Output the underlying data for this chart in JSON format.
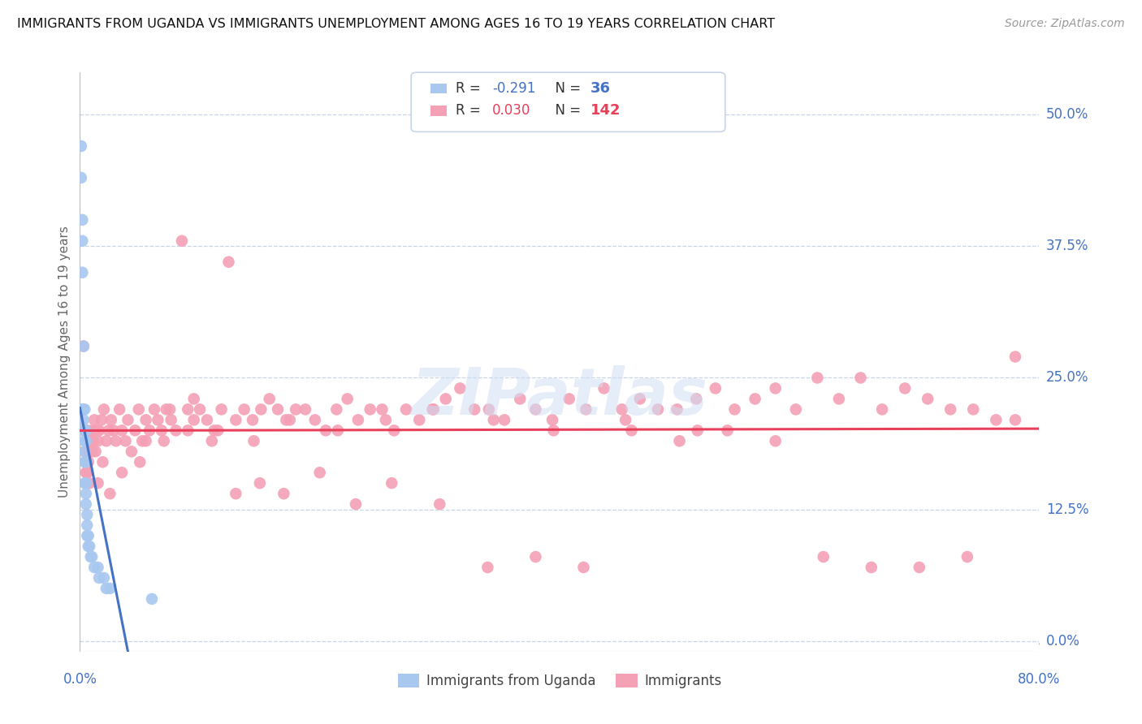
{
  "title": "IMMIGRANTS FROM UGANDA VS IMMIGRANTS UNEMPLOYMENT AMONG AGES 16 TO 19 YEARS CORRELATION CHART",
  "source": "Source: ZipAtlas.com",
  "ylabel": "Unemployment Among Ages 16 to 19 years",
  "ytick_labels": [
    "0.0%",
    "12.5%",
    "25.0%",
    "37.5%",
    "50.0%"
  ],
  "ytick_values": [
    0.0,
    0.125,
    0.25,
    0.375,
    0.5
  ],
  "xlim": [
    0.0,
    0.8
  ],
  "ylim": [
    -0.01,
    0.54
  ],
  "R_uganda": -0.291,
  "N_uganda": 36,
  "R_immigrants": 0.03,
  "N_immigrants": 142,
  "color_uganda": "#a8c8f0",
  "color_immigrants": "#f4a0b5",
  "color_line_uganda": "#4472c4",
  "color_line_immigrants": "#e8405a",
  "color_axis_labels": "#4472c4",
  "color_ylabel": "#666666",
  "watermark": "ZIPatlas",
  "background_color": "#ffffff",
  "grid_color": "#c8d4e8",
  "uganda_x": [
    0.001,
    0.001,
    0.002,
    0.002,
    0.002,
    0.002,
    0.003,
    0.003,
    0.003,
    0.003,
    0.004,
    0.004,
    0.004,
    0.004,
    0.004,
    0.005,
    0.005,
    0.005,
    0.005,
    0.005,
    0.005,
    0.006,
    0.006,
    0.006,
    0.007,
    0.007,
    0.008,
    0.009,
    0.01,
    0.012,
    0.015,
    0.016,
    0.02,
    0.022,
    0.025,
    0.06
  ],
  "uganda_y": [
    0.47,
    0.44,
    0.4,
    0.38,
    0.35,
    0.22,
    0.22,
    0.21,
    0.2,
    0.28,
    0.22,
    0.19,
    0.18,
    0.17,
    0.15,
    0.2,
    0.19,
    0.17,
    0.15,
    0.14,
    0.13,
    0.12,
    0.11,
    0.1,
    0.1,
    0.09,
    0.09,
    0.08,
    0.08,
    0.07,
    0.07,
    0.06,
    0.06,
    0.05,
    0.05,
    0.04
  ],
  "immigrants_x": [
    0.003,
    0.004,
    0.004,
    0.005,
    0.005,
    0.006,
    0.006,
    0.007,
    0.007,
    0.008,
    0.008,
    0.009,
    0.01,
    0.01,
    0.011,
    0.012,
    0.013,
    0.014,
    0.015,
    0.016,
    0.018,
    0.019,
    0.02,
    0.022,
    0.024,
    0.026,
    0.028,
    0.03,
    0.033,
    0.035,
    0.038,
    0.04,
    0.043,
    0.046,
    0.049,
    0.052,
    0.055,
    0.058,
    0.062,
    0.065,
    0.068,
    0.072,
    0.076,
    0.08,
    0.085,
    0.09,
    0.095,
    0.1,
    0.106,
    0.112,
    0.118,
    0.124,
    0.13,
    0.137,
    0.144,
    0.151,
    0.158,
    0.165,
    0.172,
    0.18,
    0.188,
    0.196,
    0.205,
    0.214,
    0.223,
    0.232,
    0.242,
    0.252,
    0.262,
    0.272,
    0.283,
    0.294,
    0.305,
    0.317,
    0.329,
    0.341,
    0.354,
    0.367,
    0.38,
    0.394,
    0.408,
    0.422,
    0.437,
    0.452,
    0.467,
    0.482,
    0.498,
    0.514,
    0.53,
    0.546,
    0.563,
    0.58,
    0.597,
    0.615,
    0.633,
    0.651,
    0.669,
    0.688,
    0.707,
    0.726,
    0.745,
    0.764,
    0.78,
    0.015,
    0.025,
    0.035,
    0.05,
    0.07,
    0.09,
    0.11,
    0.13,
    0.15,
    0.17,
    0.2,
    0.23,
    0.26,
    0.3,
    0.34,
    0.38,
    0.42,
    0.46,
    0.5,
    0.54,
    0.58,
    0.62,
    0.66,
    0.7,
    0.74,
    0.78,
    0.055,
    0.075,
    0.095,
    0.115,
    0.145,
    0.175,
    0.215,
    0.255,
    0.295,
    0.345,
    0.395,
    0.455,
    0.515
  ],
  "immigrants_y": [
    0.28,
    0.2,
    0.18,
    0.17,
    0.16,
    0.2,
    0.16,
    0.18,
    0.17,
    0.18,
    0.15,
    0.19,
    0.18,
    0.2,
    0.19,
    0.21,
    0.18,
    0.2,
    0.19,
    0.2,
    0.21,
    0.17,
    0.22,
    0.19,
    0.2,
    0.21,
    0.2,
    0.19,
    0.22,
    0.2,
    0.19,
    0.21,
    0.18,
    0.2,
    0.22,
    0.19,
    0.21,
    0.2,
    0.22,
    0.21,
    0.2,
    0.22,
    0.21,
    0.2,
    0.38,
    0.22,
    0.23,
    0.22,
    0.21,
    0.2,
    0.22,
    0.36,
    0.21,
    0.22,
    0.21,
    0.22,
    0.23,
    0.22,
    0.21,
    0.22,
    0.22,
    0.21,
    0.2,
    0.22,
    0.23,
    0.21,
    0.22,
    0.22,
    0.2,
    0.22,
    0.21,
    0.22,
    0.23,
    0.24,
    0.22,
    0.22,
    0.21,
    0.23,
    0.22,
    0.21,
    0.23,
    0.22,
    0.24,
    0.22,
    0.23,
    0.22,
    0.22,
    0.23,
    0.24,
    0.22,
    0.23,
    0.24,
    0.22,
    0.25,
    0.23,
    0.25,
    0.22,
    0.24,
    0.23,
    0.22,
    0.22,
    0.21,
    0.21,
    0.15,
    0.14,
    0.16,
    0.17,
    0.19,
    0.2,
    0.19,
    0.14,
    0.15,
    0.14,
    0.16,
    0.13,
    0.15,
    0.13,
    0.07,
    0.08,
    0.07,
    0.2,
    0.19,
    0.2,
    0.19,
    0.08,
    0.07,
    0.07,
    0.08,
    0.27,
    0.19,
    0.22,
    0.21,
    0.2,
    0.19,
    0.21,
    0.2,
    0.21,
    0.22,
    0.21,
    0.2,
    0.21,
    0.2
  ]
}
